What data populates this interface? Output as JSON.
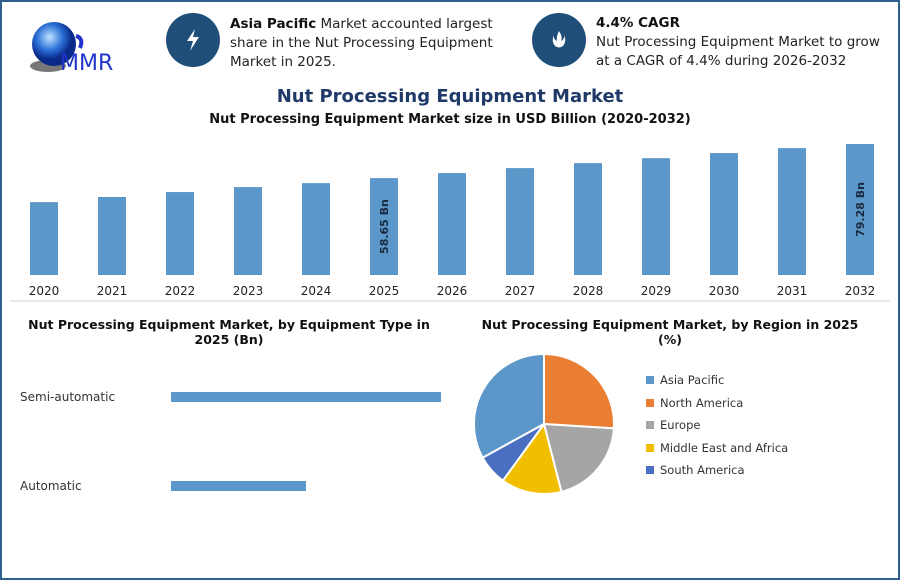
{
  "logo": {
    "text": "MMR"
  },
  "highlights": [
    {
      "icon": "lightning-icon",
      "bold": "Asia Pacific",
      "text": " Market accounted largest share in the Nut Processing Equipment Market in 2025."
    },
    {
      "icon": "flame-drop-icon",
      "bold": "4.4% CAGR",
      "text": "Nut Processing Equipment Market to grow at a CAGR of 4.4% during 2026-2032"
    }
  ],
  "main_title": "Nut Processing Equipment Market",
  "colors": {
    "bar": "#5b97c9",
    "title": "#1f3a68",
    "icon_bg": "#1f4e79"
  },
  "chart_data": [
    {
      "type": "bar",
      "title": "Nut Processing Equipment Market size in USD Billion (2020-2032)",
      "categories": [
        "2020",
        "2021",
        "2022",
        "2023",
        "2024",
        "2025",
        "2026",
        "2027",
        "2028",
        "2029",
        "2030",
        "2031",
        "2032"
      ],
      "values": [
        44.1,
        47.2,
        50.2,
        53.2,
        55.6,
        58.65,
        61.7,
        64.7,
        67.7,
        70.7,
        73.8,
        76.8,
        79.28
      ],
      "data_labels": {
        "2025": "58.65 Bn",
        "2032": "79.28 Bn"
      },
      "ylim": [
        0,
        80
      ],
      "grid": false
    },
    {
      "type": "bar",
      "orientation": "horizontal",
      "title": "Nut Processing Equipment Market, by Equipment Type in 2025 (Bn)",
      "categories": [
        "Semi-automatic",
        "Automatic"
      ],
      "values": [
        39.1,
        19.55
      ],
      "grid": false
    },
    {
      "type": "pie",
      "title": "Nut Processing Equipment Market, by Region in 2025 (%)",
      "categories": [
        "Asia Pacific",
        "North America",
        "Europe",
        "Middle East and Africa",
        "South America"
      ],
      "values": [
        33,
        26,
        20,
        14,
        7
      ],
      "colors": [
        "#5b97c9",
        "#ea7e32",
        "#a5a5a5",
        "#f2bf00",
        "#4a6fc0"
      ],
      "legend": "right"
    }
  ]
}
